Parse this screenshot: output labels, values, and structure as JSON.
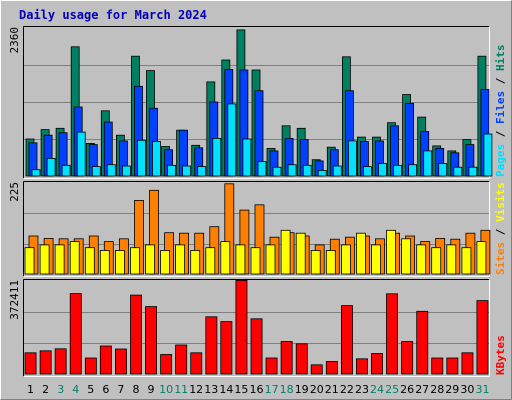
{
  "chart_data": {
    "type": "bar",
    "title": "Daily usage for March 2024",
    "categories": [
      "1",
      "2",
      "3",
      "4",
      "5",
      "6",
      "7",
      "8",
      "9",
      "10",
      "11",
      "12",
      "13",
      "14",
      "15",
      "16",
      "17",
      "18",
      "19",
      "20",
      "21",
      "22",
      "23",
      "24",
      "25",
      "26",
      "27",
      "28",
      "29",
      "30",
      "31"
    ],
    "weekend_days": [
      "3",
      "4",
      "10",
      "11",
      "17",
      "18",
      "24",
      "25",
      "31"
    ],
    "colors": {
      "hits": "#008060",
      "files": "#0040ff",
      "pages": "#00e0ff",
      "visits": "#ffff00",
      "sites": "#ff8000",
      "kbytes": "#ff0000",
      "weekday_label": "#000000",
      "weekend_label": "#008060",
      "title": "#0000b8",
      "panel_bg": "#c0c0c0"
    },
    "panels": [
      {
        "max_label": "2360",
        "max_value": 2360,
        "right_label_parts": [
          {
            "text": "Pages",
            "color": "#00e0ff"
          },
          {
            "text": " / ",
            "color": "#000000"
          },
          {
            "text": "Files",
            "color": "#0040ff"
          },
          {
            "text": " / ",
            "color": "#000000"
          },
          {
            "text": "Hits",
            "color": "#008060"
          }
        ],
        "series": [
          {
            "name": "Hits",
            "color": "#008060",
            "values": [
              590,
              740,
              760,
              2060,
              520,
              1040,
              650,
              1910,
              1680,
              470,
              730,
              490,
              1500,
              1850,
              2330,
              1690,
              440,
              800,
              760,
              260,
              460,
              1900,
              620,
              620,
              850,
              1300,
              940,
              480,
              400,
              580,
              1910
            ]
          },
          {
            "name": "Files",
            "color": "#0040ff",
            "values": [
              530,
              650,
              690,
              1100,
              500,
              860,
              560,
              1430,
              1080,
              420,
              730,
              450,
              1180,
              1700,
              1690,
              1360,
              400,
              600,
              580,
              240,
              420,
              1360,
              550,
              560,
              800,
              1160,
              710,
              440,
              370,
              500,
              1380
            ]
          },
          {
            "name": "Pages",
            "color": "#00e0ff",
            "values": [
              100,
              280,
              170,
              700,
              150,
              180,
              160,
              570,
              550,
              170,
              160,
              150,
              600,
              1150,
              590,
              230,
              140,
              180,
              170,
              90,
              160,
              560,
              150,
              200,
              170,
              180,
              400,
              200,
              140,
              140,
              670
            ]
          }
        ]
      },
      {
        "max_label": "225",
        "max_value": 225,
        "right_label_parts": [
          {
            "text": "Sites",
            "color": "#ff8000"
          },
          {
            "text": " / ",
            "color": "#000000"
          },
          {
            "text": "Visits",
            "color": "#ffff00"
          }
        ],
        "series": [
          {
            "name": "Sites",
            "color": "#ff8000",
            "values": [
              94,
              88,
              87,
              87,
              94,
              80,
              87,
              182,
              207,
              102,
              101,
              101,
              117,
              223,
              158,
              171,
              91,
              102,
              94,
              72,
              86,
              91,
              94,
              87,
              101,
              94,
              80,
              88,
              86,
              101,
              108
            ]
          },
          {
            "name": "Visits",
            "color": "#ffff00",
            "values": [
              65,
              72,
              72,
              80,
              65,
              58,
              58,
              65,
              72,
              58,
              72,
              58,
              65,
              80,
              72,
              65,
              72,
              108,
              101,
              58,
              58,
              72,
              101,
              72,
              108,
              87,
              72,
              65,
              72,
              65,
              80
            ]
          }
        ]
      },
      {
        "max_label": "372411",
        "max_value": 372411,
        "right_label_parts": [
          {
            "text": "KBytes",
            "color": "#ff0000"
          }
        ],
        "series": [
          {
            "name": "KBytes",
            "color": "#ff0000",
            "values": [
              85000,
              93000,
              101000,
              322000,
              64000,
              112000,
              100000,
              316000,
              270000,
              78000,
              116000,
              85000,
              229000,
              210000,
              375000,
              221000,
              64000,
              130000,
              121000,
              37000,
              50000,
              274000,
              61000,
              82000,
              321000,
              130000,
              251000,
              64000,
              64000,
              85000,
              294000
            ]
          }
        ]
      }
    ]
  }
}
